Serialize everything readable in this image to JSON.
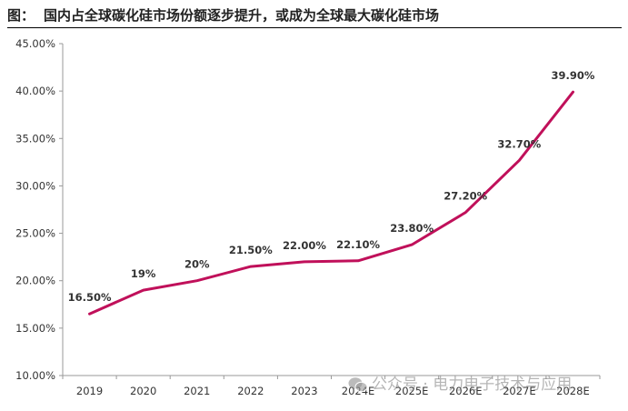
{
  "header": {
    "prefix": "图：",
    "title": "国内占全球碳化硅市场份额逐步提升，或成为全球最大碳化硅市场"
  },
  "watermark": {
    "icon": "wechat-icon",
    "text": "公众号 · 电力电子技术与应用"
  },
  "colors": {
    "line": "#c0105a",
    "axis": "#999999"
  },
  "chart_data": {
    "type": "line",
    "title": "",
    "xlabel": "",
    "ylabel": "",
    "categories": [
      "2019",
      "2020",
      "2021",
      "2022",
      "2023",
      "2024E",
      "2025E",
      "2026E",
      "2027E",
      "2028E"
    ],
    "series": [
      {
        "values": [
          16.5,
          19,
          20,
          21.5,
          22,
          22.1,
          23.8,
          27.2,
          32.7,
          39.9
        ],
        "labels": [
          "16.50%",
          "19%",
          "20%",
          "21.50%",
          "22.00%",
          "22.10%",
          "23.80%",
          "27.20%",
          "32.70%",
          "39.90%"
        ]
      }
    ],
    "ylim": [
      10,
      45
    ],
    "yticks": [
      10,
      15,
      20,
      25,
      30,
      35,
      40,
      45
    ],
    "ytick_labels": [
      "10.00%",
      "15.00%",
      "20.00%",
      "25.00%",
      "30.00%",
      "35.00%",
      "40.00%",
      "45.00%"
    ],
    "grid": false,
    "legend": "none"
  }
}
